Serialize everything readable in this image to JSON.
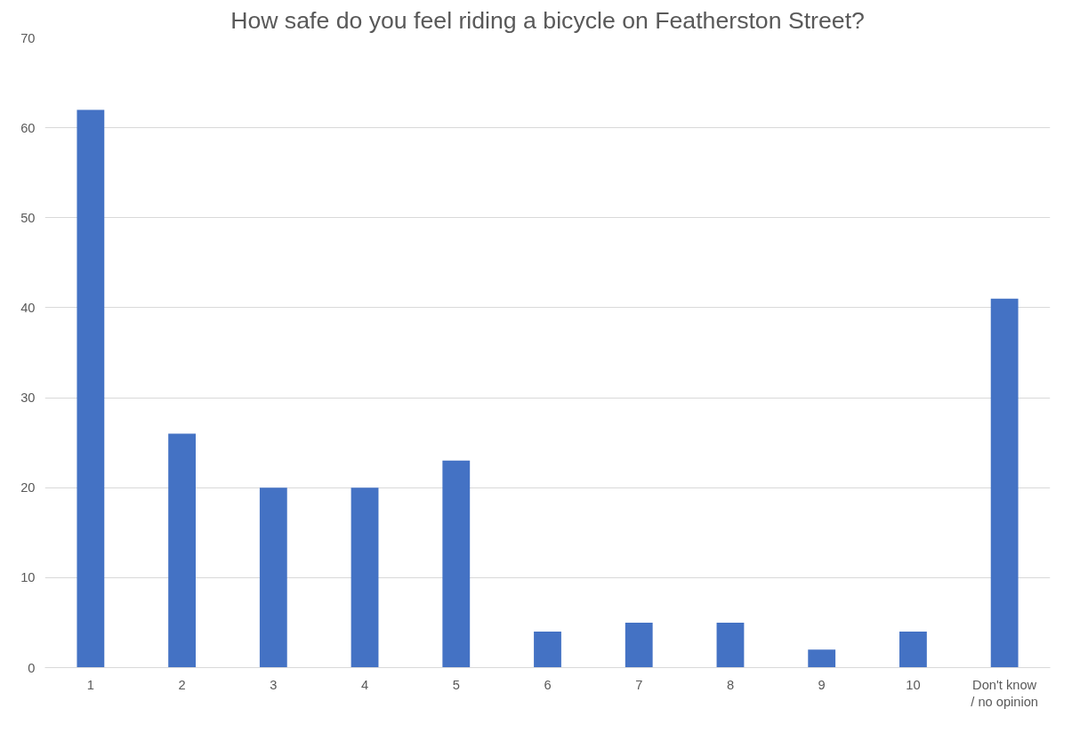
{
  "chart_data": {
    "type": "bar",
    "title": "How safe do you feel riding a bicycle on Featherston Street?",
    "categories": [
      "1",
      "2",
      "3",
      "4",
      "5",
      "6",
      "7",
      "8",
      "9",
      "10",
      "Don't know / no opinion"
    ],
    "series": [
      {
        "color": "#4472c4",
        "values": [
          62,
          26,
          20,
          20,
          23,
          4,
          5,
          5,
          2,
          4,
          41
        ]
      }
    ],
    "ylim": [
      0,
      70
    ],
    "yticks": [
      0,
      10,
      20,
      30,
      40,
      50,
      60,
      70
    ],
    "grid": "y"
  }
}
